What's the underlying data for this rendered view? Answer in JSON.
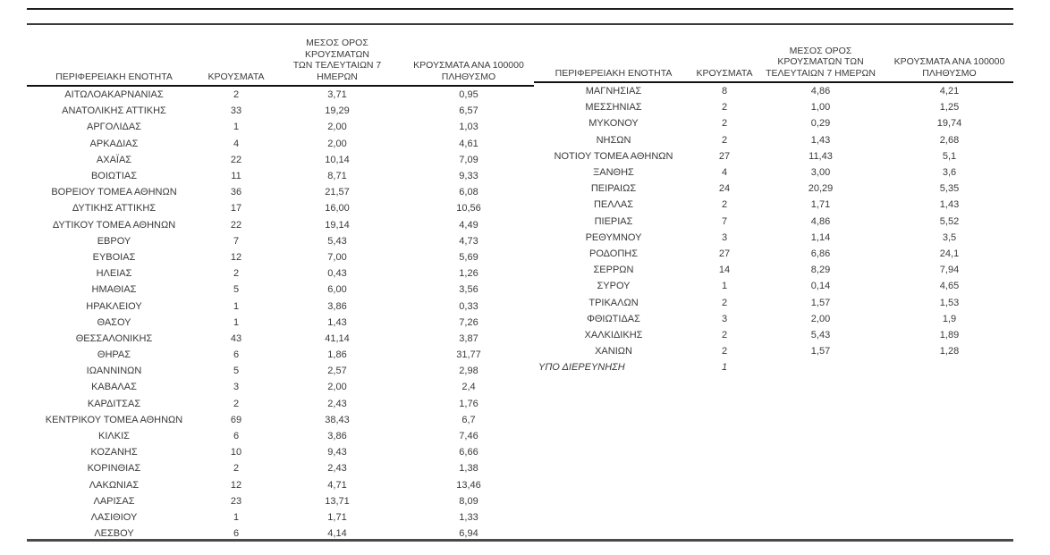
{
  "colors": {
    "text": "#3a3a3a",
    "rule_dark": "#1f1f1f",
    "rule_gray": "#4a4a4a",
    "background": "#ffffff"
  },
  "left_table": {
    "headers": [
      "ΠΕΡΙΦΕΡΕΙΑΚΗ ΕΝΟΤΗΤΑ",
      "ΚΡΟΥΣΜΑΤΑ",
      "ΜΕΣΟΣ ΟΡΟΣ ΚΡΟΥΣΜΑΤΩΝ\nΤΩΝ ΤΕΛΕΥΤΑΙΩΝ 7\nΗΜΕΡΩΝ",
      "ΚΡΟΥΣΜΑΤΑ ΑΝΑ 100000\nΠΛΗΘΥΣΜΟ"
    ],
    "rows": [
      {
        "c": [
          "ΑΙΤΩΛΟΑΚΑΡΝΑΝΙΑΣ",
          "2",
          "3,71",
          "0,95"
        ]
      },
      {
        "c": [
          "ΑΝΑΤΟΛΙΚΗΣ ΑΤΤΙΚΗΣ",
          "33",
          "19,29",
          "6,57"
        ]
      },
      {
        "c": [
          "ΑΡΓΟΛΙΔΑΣ",
          "1",
          "2,00",
          "1,03"
        ]
      },
      {
        "c": [
          "ΑΡΚΑΔΙΑΣ",
          "4",
          "2,00",
          "4,61"
        ]
      },
      {
        "c": [
          "ΑΧΑΪΑΣ",
          "22",
          "10,14",
          "7,09"
        ]
      },
      {
        "c": [
          "ΒΟΙΩΤΙΑΣ",
          "11",
          "8,71",
          "9,33"
        ]
      },
      {
        "c": [
          "ΒΟΡΕΙΟΥ ΤΟΜΕΑ ΑΘΗΝΩΝ",
          "36",
          "21,57",
          "6,08"
        ]
      },
      {
        "c": [
          "ΔΥΤΙΚΗΣ ΑΤΤΙΚΗΣ",
          "17",
          "16,00",
          "10,56"
        ]
      },
      {
        "c": [
          "ΔΥΤΙΚΟΥ ΤΟΜΕΑ ΑΘΗΝΩΝ",
          "22",
          "19,14",
          "4,49"
        ]
      },
      {
        "c": [
          "ΕΒΡΟΥ",
          "7",
          "5,43",
          "4,73"
        ]
      },
      {
        "c": [
          "ΕΥΒΟΙΑΣ",
          "12",
          "7,00",
          "5,69"
        ]
      },
      {
        "c": [
          "ΗΛΕΙΑΣ",
          "2",
          "0,43",
          "1,26"
        ]
      },
      {
        "c": [
          "ΗΜΑΘΙΑΣ",
          "5",
          "6,00",
          "3,56"
        ]
      },
      {
        "c": [
          "ΗΡΑΚΛΕΙΟΥ",
          "1",
          "3,86",
          "0,33"
        ]
      },
      {
        "c": [
          "ΘΑΣΟΥ",
          "1",
          "1,43",
          "7,26"
        ]
      },
      {
        "c": [
          "ΘΕΣΣΑΛΟΝΙΚΗΣ",
          "43",
          "41,14",
          "3,87"
        ]
      },
      {
        "c": [
          "ΘΗΡΑΣ",
          "6",
          "1,86",
          "31,77"
        ]
      },
      {
        "c": [
          "ΙΩΑΝΝΙΝΩΝ",
          "5",
          "2,57",
          "2,98"
        ]
      },
      {
        "c": [
          "ΚΑΒΑΛΑΣ",
          "3",
          "2,00",
          "2,4"
        ]
      },
      {
        "c": [
          "ΚΑΡΔΙΤΣΑΣ",
          "2",
          "2,43",
          "1,76"
        ]
      },
      {
        "c": [
          "ΚΕΝΤΡΙΚΟΥ ΤΟΜΕΑ ΑΘΗΝΩΝ",
          "69",
          "38,43",
          "6,7"
        ]
      },
      {
        "c": [
          "ΚΙΛΚΙΣ",
          "6",
          "3,86",
          "7,46"
        ]
      },
      {
        "c": [
          "ΚΟΖΑΝΗΣ",
          "10",
          "9,43",
          "6,66"
        ]
      },
      {
        "c": [
          "ΚΟΡΙΝΘΙΑΣ",
          "2",
          "2,43",
          "1,38"
        ]
      },
      {
        "c": [
          "ΛΑΚΩΝΙΑΣ",
          "12",
          "4,71",
          "13,46"
        ]
      },
      {
        "c": [
          "ΛΑΡΙΣΑΣ",
          "23",
          "13,71",
          "8,09"
        ]
      },
      {
        "c": [
          "ΛΑΣΙΘΙΟΥ",
          "1",
          "1,71",
          "1,33"
        ]
      },
      {
        "c": [
          "ΛΕΣΒΟΥ",
          "6",
          "4,14",
          "6,94"
        ]
      }
    ]
  },
  "right_table": {
    "headers": [
      "ΠΕΡΙΦΕΡΕΙΑΚΗ ΕΝΟΤΗΤΑ",
      "ΚΡΟΥΣΜΑΤΑ",
      "ΜΕΣΟΣ ΟΡΟΣ\nΚΡΟΥΣΜΑΤΩΝ ΤΩΝ\nΤΕΛΕΥΤΑΙΩΝ 7 ΗΜΕΡΩΝ",
      "ΚΡΟΥΣΜΑΤΑ ΑΝΑ 100000\nΠΛΗΘΥΣΜΟ"
    ],
    "rows": [
      {
        "c": [
          "ΜΑΓΝΗΣΙΑΣ",
          "8",
          "4,86",
          "4,21"
        ]
      },
      {
        "c": [
          "ΜΕΣΣΗΝΙΑΣ",
          "2",
          "1,00",
          "1,25"
        ]
      },
      {
        "c": [
          "ΜΥΚΟΝΟΥ",
          "2",
          "0,29",
          "19,74"
        ]
      },
      {
        "c": [
          "ΝΗΣΩΝ",
          "2",
          "1,43",
          "2,68"
        ]
      },
      {
        "c": [
          "ΝΟΤΙΟΥ ΤΟΜΕΑ ΑΘΗΝΩΝ",
          "27",
          "11,43",
          "5,1"
        ]
      },
      {
        "c": [
          "ΞΑΝΘΗΣ",
          "4",
          "3,00",
          "3,6"
        ]
      },
      {
        "c": [
          "ΠΕΙΡΑΙΩΣ",
          "24",
          "20,29",
          "5,35"
        ]
      },
      {
        "c": [
          "ΠΕΛΛΑΣ",
          "2",
          "1,71",
          "1,43"
        ]
      },
      {
        "c": [
          "ΠΙΕΡΙΑΣ",
          "7",
          "4,86",
          "5,52"
        ]
      },
      {
        "c": [
          "ΡΕΘΥΜΝΟΥ",
          "3",
          "1,14",
          "3,5"
        ]
      },
      {
        "c": [
          "ΡΟΔΟΠΗΣ",
          "27",
          "6,86",
          "24,1"
        ]
      },
      {
        "c": [
          "ΣΕΡΡΩΝ",
          "14",
          "8,29",
          "7,94"
        ]
      },
      {
        "c": [
          "ΣΥΡΟΥ",
          "1",
          "0,14",
          "4,65"
        ]
      },
      {
        "c": [
          "ΤΡΙΚΑΛΩΝ",
          "2",
          "1,57",
          "1,53"
        ]
      },
      {
        "c": [
          "ΦΘΙΩΤΙΔΑΣ",
          "3",
          "2,00",
          "1,9"
        ]
      },
      {
        "c": [
          "ΧΑΛΚΙΔΙΚΗΣ",
          "2",
          "5,43",
          "1,89"
        ]
      },
      {
        "c": [
          "ΧΑΝΙΩΝ",
          "2",
          "1,57",
          "1,28"
        ]
      },
      {
        "c": [
          "ΥΠΟ ΔΙΕΡΕΥΝΗΣΗ",
          "1",
          "",
          ""
        ],
        "italic": true
      }
    ]
  }
}
